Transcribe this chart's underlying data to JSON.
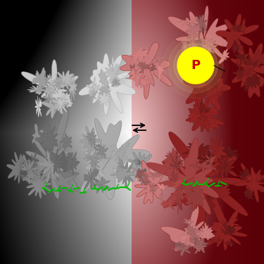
{
  "figsize": [
    3.75,
    3.75
  ],
  "dpi": 100,
  "chromophore_color": "#00bb00",
  "yellow_color": "#ffff00",
  "red_label_color": "#cc0000",
  "phospho_label": "P",
  "arrow_color": "#000000"
}
